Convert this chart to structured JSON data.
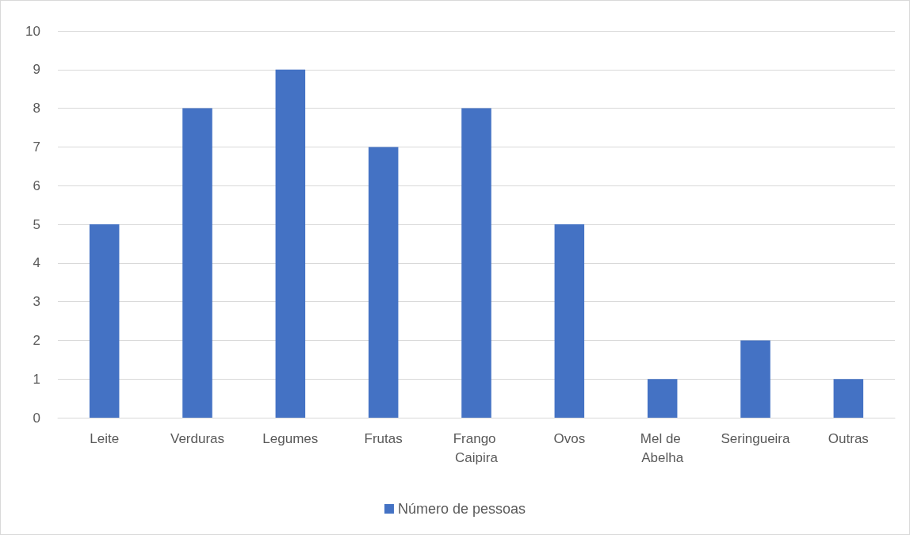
{
  "chart_data": {
    "type": "bar",
    "categories": [
      "Leite",
      "Verduras",
      "Legumes",
      "Frutas",
      "Frango Caipira",
      "Ovos",
      "Mel de Abelha",
      "Seringueira",
      "Outras"
    ],
    "series": [
      {
        "name": "Número de pessoas",
        "color": "#4472c4",
        "values": [
          5,
          8,
          9,
          7,
          8,
          5,
          1,
          2,
          1
        ]
      }
    ],
    "ylim": [
      0,
      10
    ],
    "yticks": [
      0,
      1,
      2,
      3,
      4,
      5,
      6,
      7,
      8,
      9,
      10
    ],
    "grid": "y",
    "legend": "bottom"
  }
}
